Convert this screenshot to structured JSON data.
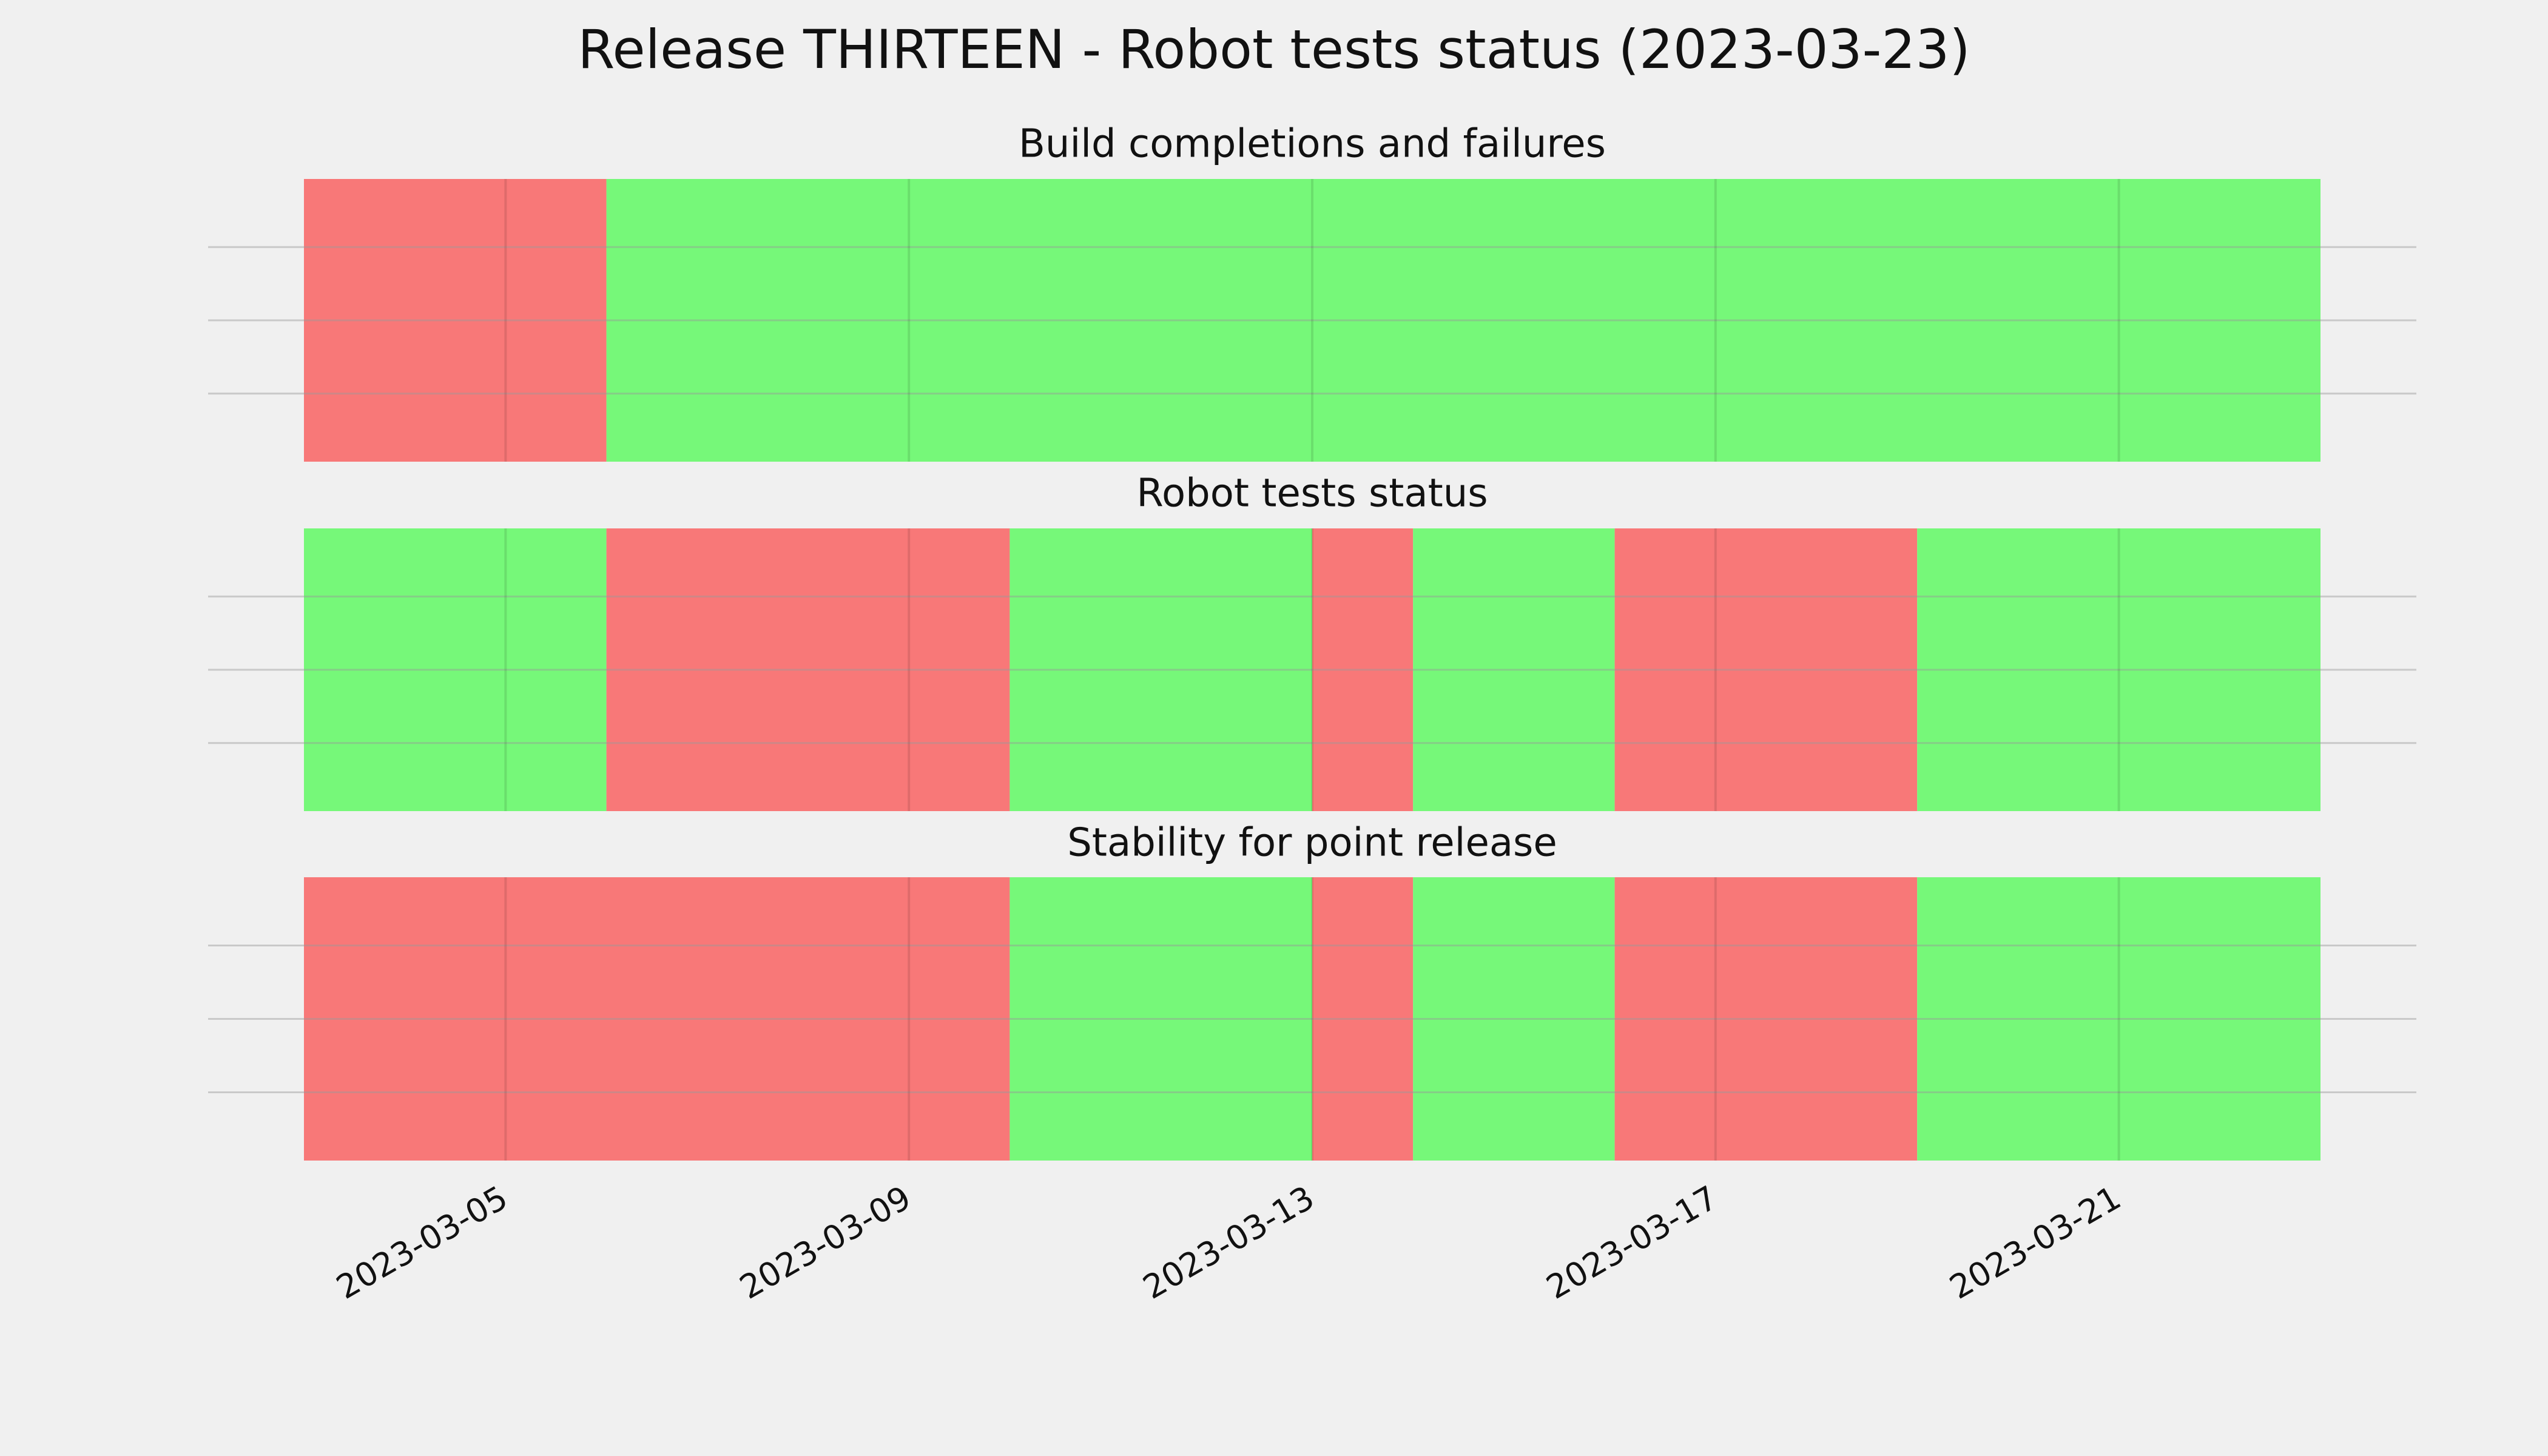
{
  "title": "Release THIRTEEN - Robot tests status (2023-03-23)",
  "chart_data": [
    {
      "type": "timeline",
      "title": "Build completions and failures",
      "xlim": [
        "2023-03-03",
        "2023-03-23"
      ],
      "xticks": [
        "2023-03-05",
        "2023-03-09",
        "2023-03-13",
        "2023-03-17",
        "2023-03-21"
      ],
      "grid": true,
      "spans": [
        {
          "start": "2023-03-03",
          "end": "2023-03-06",
          "color": "#f87878"
        },
        {
          "start": "2023-03-06",
          "end": "2023-03-23",
          "color": "#76f879"
        }
      ]
    },
    {
      "type": "timeline",
      "title": "Robot tests status",
      "xlim": [
        "2023-03-03",
        "2023-03-23"
      ],
      "xticks": [
        "2023-03-05",
        "2023-03-09",
        "2023-03-13",
        "2023-03-17",
        "2023-03-21"
      ],
      "grid": true,
      "spans": [
        {
          "start": "2023-03-03",
          "end": "2023-03-06",
          "color": "#76f879"
        },
        {
          "start": "2023-03-06",
          "end": "2023-03-10",
          "color": "#f87878"
        },
        {
          "start": "2023-03-10",
          "end": "2023-03-13",
          "color": "#76f879"
        },
        {
          "start": "2023-03-13",
          "end": "2023-03-14",
          "color": "#f87878"
        },
        {
          "start": "2023-03-14",
          "end": "2023-03-16",
          "color": "#76f879"
        },
        {
          "start": "2023-03-16",
          "end": "2023-03-19",
          "color": "#f87878"
        },
        {
          "start": "2023-03-19",
          "end": "2023-03-23",
          "color": "#76f879"
        }
      ]
    },
    {
      "type": "timeline",
      "title": "Stability for point release",
      "xlim": [
        "2023-03-03",
        "2023-03-23"
      ],
      "xticks": [
        "2023-03-05",
        "2023-03-09",
        "2023-03-13",
        "2023-03-17",
        "2023-03-21"
      ],
      "grid": true,
      "spans": [
        {
          "start": "2023-03-03",
          "end": "2023-03-10",
          "color": "#f87878"
        },
        {
          "start": "2023-03-10",
          "end": "2023-03-13",
          "color": "#76f879"
        },
        {
          "start": "2023-03-13",
          "end": "2023-03-14",
          "color": "#f87878"
        },
        {
          "start": "2023-03-14",
          "end": "2023-03-16",
          "color": "#76f879"
        },
        {
          "start": "2023-03-16",
          "end": "2023-03-19",
          "color": "#f87878"
        },
        {
          "start": "2023-03-19",
          "end": "2023-03-23",
          "color": "#76f879"
        }
      ]
    }
  ]
}
